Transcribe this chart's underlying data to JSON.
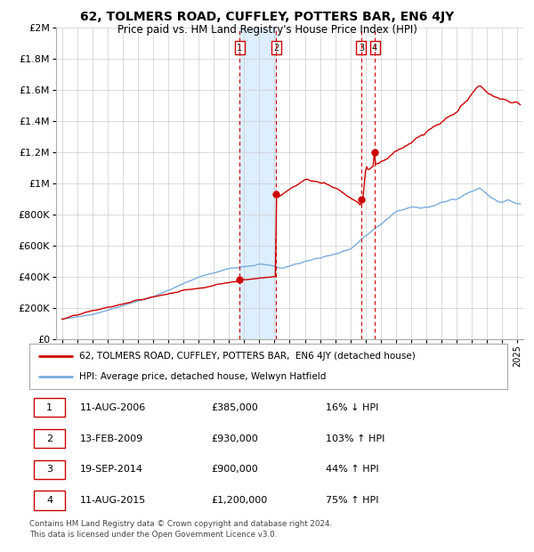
{
  "title": "62, TOLMERS ROAD, CUFFLEY, POTTERS BAR, EN6 4JY",
  "subtitle": "Price paid vs. HM Land Registry's House Price Index (HPI)",
  "footer1": "Contains HM Land Registry data © Crown copyright and database right 2024.",
  "footer2": "This data is licensed under the Open Government Licence v3.0.",
  "transactions": [
    {
      "num": 1,
      "date": "11-AUG-2006",
      "price": "£385,000",
      "hpi": "16% ↓ HPI",
      "x": 2006.7
    },
    {
      "num": 2,
      "date": "13-FEB-2009",
      "price": "£930,000",
      "hpi": "103% ↑ HPI",
      "x": 2009.12
    },
    {
      "num": 3,
      "date": "19-SEP-2014",
      "price": "£900,000",
      "hpi": "44% ↑ HPI",
      "x": 2014.72
    },
    {
      "num": 4,
      "date": "11-AUG-2015",
      "price": "£1,200,000",
      "hpi": "75% ↑ HPI",
      "x": 2015.61
    }
  ],
  "transaction_prices": [
    385000,
    930000,
    900000,
    1200000
  ],
  "shade_x1": 2006.7,
  "shade_x2": 2009.12,
  "shade_color": "#ddeeff",
  "red_color": "#cc0000",
  "blue_color": "#7aace0",
  "ylim": [
    0,
    2000000
  ],
  "xlim_start": 1994.6,
  "xlim_end": 2025.4
}
